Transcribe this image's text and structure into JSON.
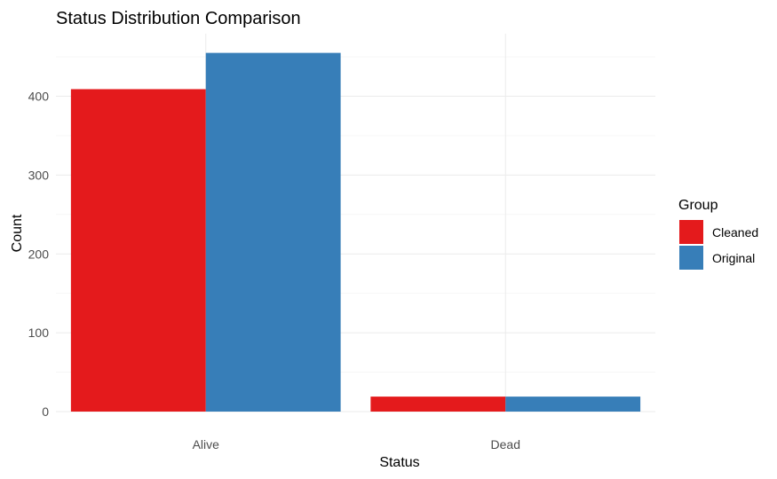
{
  "chart_data": {
    "type": "bar",
    "title": "Status Distribution Comparison",
    "xlabel": "Status",
    "ylabel": "Count",
    "categories": [
      "Alive",
      "Dead"
    ],
    "series": [
      {
        "name": "Cleaned",
        "values": [
          409,
          19
        ],
        "color": "#e41a1c"
      },
      {
        "name": "Original",
        "values": [
          455,
          19
        ],
        "color": "#377eb8"
      }
    ],
    "ylim": [
      0,
      455
    ],
    "yticks": [
      0,
      100,
      200,
      300,
      400
    ],
    "grid": true,
    "legend": {
      "title": "Group",
      "position": "right"
    }
  }
}
